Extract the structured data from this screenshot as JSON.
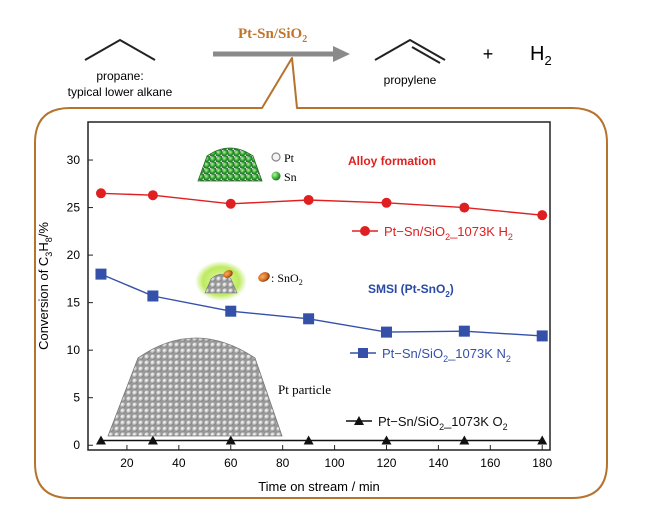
{
  "reaction": {
    "catalyst": "Pt-Sn/SiO",
    "catalyst_sub": "2",
    "reactant_line1": "propane:",
    "reactant_line2": "typical lower alkane",
    "product": "propylene",
    "plus": "+",
    "h2_main": "H",
    "h2_sub": "2"
  },
  "insets": {
    "legend_pt": "Pt",
    "legend_sn": "Sn",
    "sno2_label": ": SnO",
    "sno2_sub": "2",
    "pt_particle": "Pt particle",
    "alloy_formation": "Alloy formation",
    "smsi": "SMSI (Pt-SnO",
    "smsi_sub": "2",
    "smsi_close": ")"
  },
  "colors": {
    "red_series": "#e02020",
    "blue_series": "#3450a8",
    "black_series": "#111111",
    "frame_orange": "#b5732e",
    "arrow_gray": "#8a8a8a",
    "catalyst_text": "#c0752a",
    "smsi_text": "#2a49a6"
  },
  "chart_data": {
    "type": "line",
    "xlabel": "Time on stream / min",
    "ylabel": "Conversion of C3H8/%",
    "ylabel_parts": {
      "a": "Conversion of C",
      "b": "3",
      "c": "H",
      "d": "8",
      "e": "/%"
    },
    "xlim": [
      5,
      183
    ],
    "ylim": [
      -0.5,
      34
    ],
    "xticks": [
      20,
      40,
      60,
      80,
      100,
      120,
      140,
      160,
      180
    ],
    "yticks": [
      0,
      5,
      10,
      15,
      20,
      25,
      30
    ],
    "grid": false,
    "series": [
      {
        "name": "Pt−Sn/SiO2_1073K H2",
        "legend": {
          "a": "Pt−Sn/SiO",
          "b": "2",
          "c": "_1073K H",
          "d": "2"
        },
        "marker": "circle",
        "color": "#e02020",
        "x": [
          10,
          30,
          60,
          90,
          120,
          150,
          180
        ],
        "y": [
          26.5,
          26.3,
          25.4,
          25.8,
          25.5,
          25.0,
          24.2
        ]
      },
      {
        "name": "Pt−Sn/SiO2_1073K N2",
        "legend": {
          "a": "Pt−Sn/SiO",
          "b": "2",
          "c": "_1073K N",
          "d": "2"
        },
        "marker": "square",
        "color": "#3450a8",
        "x": [
          10,
          30,
          60,
          90,
          120,
          150,
          180
        ],
        "y": [
          18.0,
          15.7,
          14.1,
          13.3,
          11.9,
          12.0,
          11.5
        ]
      },
      {
        "name": "Pt−Sn/SiO2_1073K O2",
        "legend": {
          "a": "Pt−Sn/SiO",
          "b": "2",
          "c": "_1073K O",
          "d": "2"
        },
        "marker": "triangle",
        "color": "#111111",
        "x": [
          10,
          30,
          60,
          90,
          120,
          150,
          180
        ],
        "y": [
          0.5,
          0.5,
          0.5,
          0.5,
          0.5,
          0.5,
          0.5
        ]
      }
    ]
  }
}
